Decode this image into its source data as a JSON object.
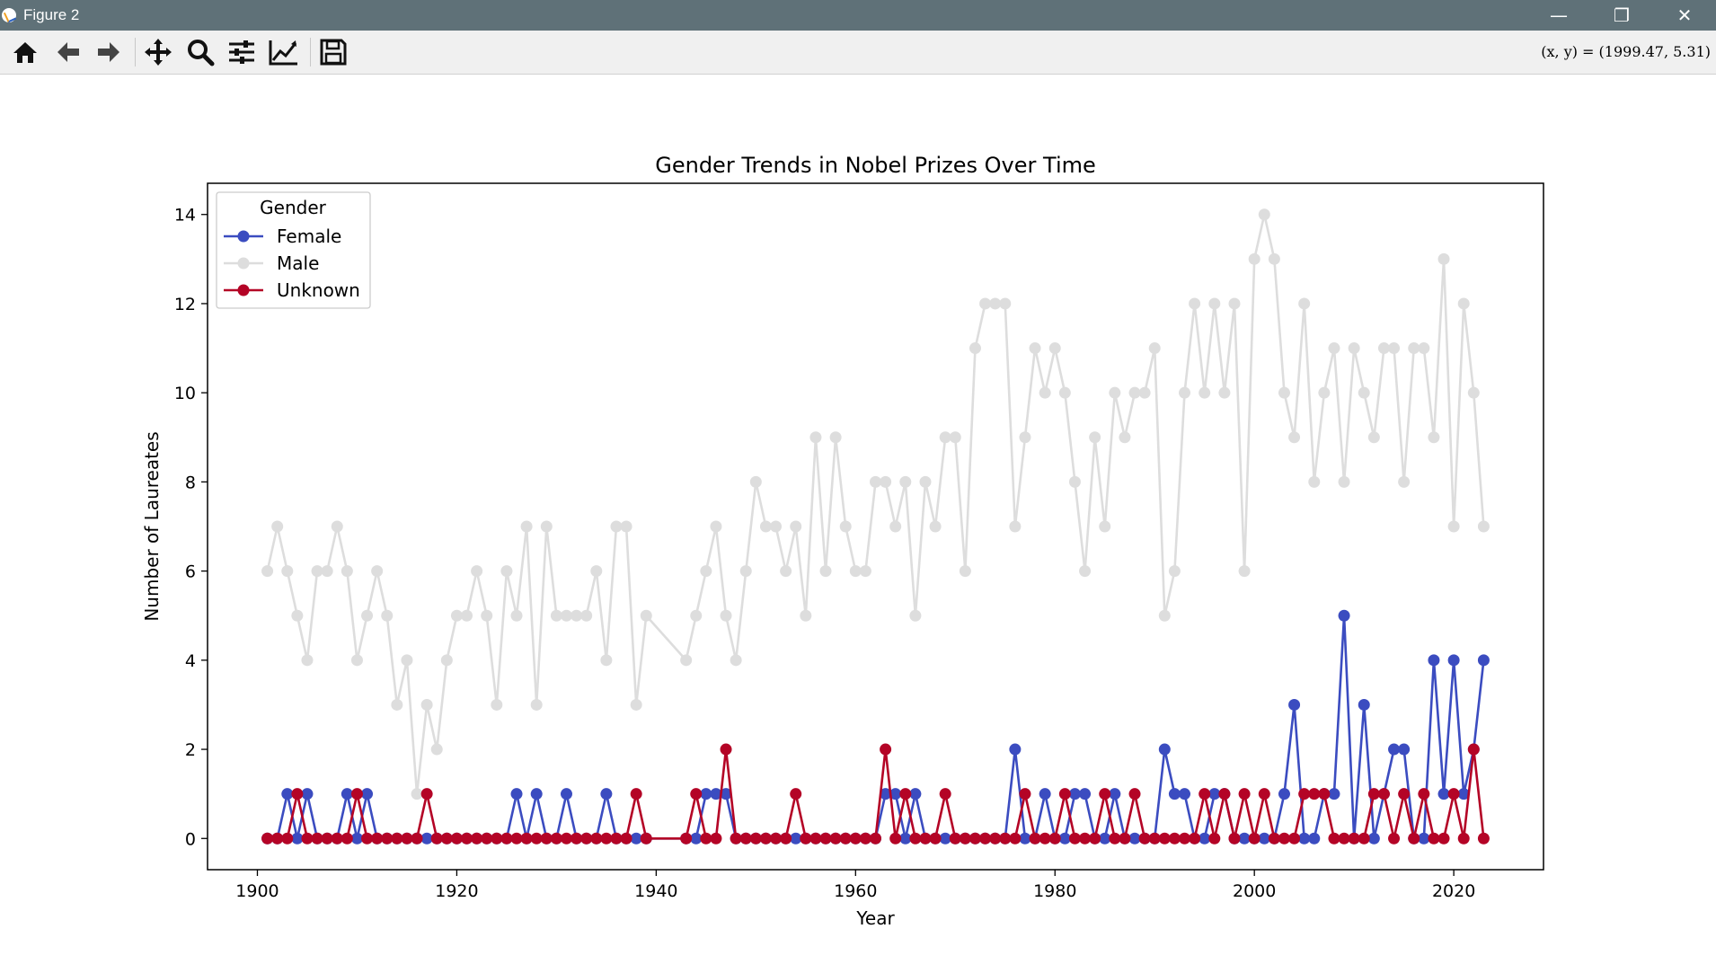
{
  "window": {
    "title": "Figure 2",
    "controls": {
      "minimize": "—",
      "restore": "❐",
      "close": "✕"
    }
  },
  "toolbar": {
    "buttons": [
      {
        "name": "home-icon"
      },
      {
        "name": "back-arrow-icon"
      },
      {
        "name": "forward-arrow-icon"
      },
      {
        "name": "pan-icon"
      },
      {
        "name": "zoom-icon"
      },
      {
        "name": "configure-subplots-icon"
      },
      {
        "name": "edit-axis-icon"
      },
      {
        "name": "save-icon"
      }
    ],
    "coords": "(x, y) = (1999.47, 5.31)"
  },
  "chart_data": {
    "type": "line",
    "title": "Gender Trends in Nobel Prizes Over Time",
    "xlabel": "Year",
    "ylabel": "Number of Laureates",
    "xlim": [
      1895,
      2029
    ],
    "ylim": [
      -0.7,
      14.7
    ],
    "xticks": [
      1900,
      1920,
      1940,
      1960,
      1980,
      2000,
      2020
    ],
    "yticks": [
      0,
      2,
      4,
      6,
      8,
      10,
      12,
      14
    ],
    "legend": {
      "title": "Gender",
      "position": "top-left"
    },
    "markers": "circle",
    "x": [
      1901,
      1902,
      1903,
      1904,
      1905,
      1906,
      1907,
      1908,
      1909,
      1910,
      1911,
      1912,
      1913,
      1914,
      1915,
      1916,
      1917,
      1918,
      1919,
      1920,
      1921,
      1922,
      1923,
      1924,
      1925,
      1926,
      1927,
      1928,
      1929,
      1930,
      1931,
      1932,
      1933,
      1934,
      1935,
      1936,
      1937,
      1938,
      1939,
      1943,
      1944,
      1945,
      1946,
      1947,
      1948,
      1949,
      1950,
      1951,
      1952,
      1953,
      1954,
      1955,
      1956,
      1957,
      1958,
      1959,
      1960,
      1961,
      1962,
      1963,
      1964,
      1965,
      1966,
      1967,
      1968,
      1969,
      1970,
      1971,
      1972,
      1973,
      1974,
      1975,
      1976,
      1977,
      1978,
      1979,
      1980,
      1981,
      1982,
      1983,
      1984,
      1985,
      1986,
      1987,
      1988,
      1989,
      1990,
      1991,
      1992,
      1993,
      1994,
      1995,
      1996,
      1997,
      1998,
      1999,
      2000,
      2001,
      2002,
      2003,
      2004,
      2005,
      2006,
      2007,
      2008,
      2009,
      2010,
      2011,
      2012,
      2013,
      2014,
      2015,
      2016,
      2017,
      2018,
      2019,
      2020,
      2021,
      2022,
      2023
    ],
    "series": [
      {
        "name": "Female",
        "color": "#3b4cc0",
        "values": [
          0,
          0,
          1,
          0,
          1,
          0,
          0,
          0,
          1,
          0,
          1,
          0,
          0,
          0,
          0,
          0,
          0,
          0,
          0,
          0,
          0,
          0,
          0,
          0,
          0,
          1,
          0,
          1,
          0,
          0,
          1,
          0,
          0,
          0,
          1,
          0,
          0,
          0,
          0,
          0,
          0,
          1,
          1,
          1,
          0,
          0,
          0,
          0,
          0,
          0,
          0,
          0,
          0,
          0,
          0,
          0,
          0,
          0,
          0,
          1,
          1,
          0,
          1,
          0,
          0,
          0,
          0,
          0,
          0,
          0,
          0,
          0,
          2,
          0,
          0,
          1,
          0,
          0,
          1,
          1,
          0,
          0,
          1,
          0,
          0,
          0,
          0,
          2,
          1,
          1,
          0,
          0,
          1,
          1,
          0,
          0,
          0,
          0,
          0,
          1,
          3,
          0,
          0,
          1,
          1,
          5,
          0,
          3,
          0,
          1,
          2,
          2,
          0,
          0,
          4,
          1,
          4,
          1,
          2,
          4
        ]
      },
      {
        "name": "Male",
        "color": "#dddddd",
        "values": [
          6,
          7,
          6,
          5,
          4,
          6,
          6,
          7,
          6,
          4,
          5,
          6,
          5,
          3,
          4,
          1,
          3,
          2,
          4,
          5,
          5,
          6,
          5,
          3,
          6,
          5,
          7,
          3,
          7,
          5,
          5,
          5,
          5,
          6,
          4,
          7,
          7,
          3,
          5,
          4,
          5,
          6,
          7,
          5,
          4,
          6,
          8,
          7,
          7,
          6,
          7,
          5,
          9,
          6,
          9,
          7,
          6,
          6,
          8,
          8,
          7,
          8,
          5,
          8,
          7,
          9,
          9,
          6,
          11,
          12,
          12,
          12,
          7,
          9,
          11,
          10,
          11,
          10,
          8,
          6,
          9,
          7,
          10,
          9,
          10,
          10,
          11,
          5,
          6,
          10,
          12,
          10,
          12,
          10,
          12,
          6,
          13,
          14,
          13,
          10,
          9,
          12,
          8,
          10,
          11,
          8,
          11,
          10,
          9,
          11,
          11,
          8,
          11,
          11,
          9,
          13,
          7,
          12,
          10,
          7
        ]
      },
      {
        "name": "Unknown",
        "color": "#b40426",
        "values": [
          0,
          0,
          0,
          1,
          0,
          0,
          0,
          0,
          0,
          1,
          0,
          0,
          0,
          0,
          0,
          0,
          1,
          0,
          0,
          0,
          0,
          0,
          0,
          0,
          0,
          0,
          0,
          0,
          0,
          0,
          0,
          0,
          0,
          0,
          0,
          0,
          0,
          1,
          0,
          0,
          1,
          0,
          0,
          2,
          0,
          0,
          0,
          0,
          0,
          0,
          1,
          0,
          0,
          0,
          0,
          0,
          0,
          0,
          0,
          2,
          0,
          1,
          0,
          0,
          0,
          1,
          0,
          0,
          0,
          0,
          0,
          0,
          0,
          1,
          0,
          0,
          0,
          1,
          0,
          0,
          0,
          1,
          0,
          0,
          1,
          0,
          0,
          0,
          0,
          0,
          0,
          1,
          0,
          1,
          0,
          1,
          0,
          1,
          0,
          0,
          0,
          1,
          1,
          1,
          0,
          0,
          0,
          0,
          1,
          1,
          0,
          1,
          0,
          1,
          0,
          0,
          1,
          0,
          2,
          0
        ]
      }
    ]
  }
}
